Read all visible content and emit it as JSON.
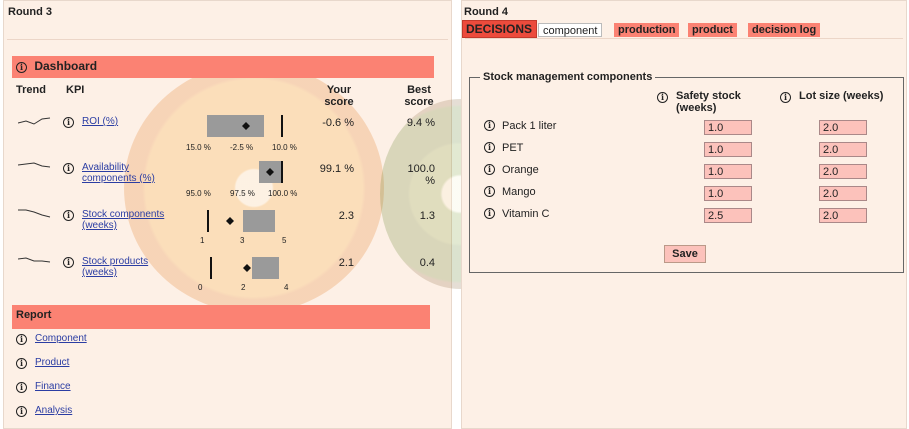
{
  "left": {
    "title": "Round 3",
    "dashboard": {
      "header": "Dashboard",
      "columns": {
        "trend": "Trend",
        "kpi": "KPI",
        "your_score": "Your score",
        "best_score": "Best score"
      },
      "kpis": [
        {
          "name": "ROI (%)",
          "your_score": "-0.6 %",
          "best_score": "9.4 %",
          "ticks": [
            "15.0 %",
            "-2.5 %",
            "10.0 %"
          ],
          "trend_icon": "sparkline"
        },
        {
          "name": "Availability components (%)",
          "your_score": "99.1 %",
          "best_score": "100.0 %",
          "ticks": [
            "95.0 %",
            "97.5 %",
            "100.0 %"
          ],
          "trend_icon": "sparkline"
        },
        {
          "name": "Stock components (weeks)",
          "your_score": "2.3",
          "best_score": "1.3",
          "ticks": [
            "1",
            "3",
            "5"
          ],
          "trend_icon": "sparkline"
        },
        {
          "name": "Stock products (weeks)",
          "your_score": "2.1",
          "best_score": "0.4",
          "ticks": [
            "0",
            "2",
            "4"
          ],
          "trend_icon": "sparkline"
        }
      ]
    },
    "report": {
      "header": "Report",
      "items": [
        "Component",
        "Product",
        "Finance",
        "Analysis"
      ]
    }
  },
  "right": {
    "title": "Round 4",
    "tabs": {
      "decisions": "DECISIONS",
      "items": [
        "component",
        "production",
        "product",
        "decision log"
      ],
      "active": "component"
    },
    "stock": {
      "legend": "Stock management components",
      "col_safety": "Safety stock (weeks)",
      "col_lot": "Lot size (weeks)",
      "rows": [
        {
          "name": "Pack 1 liter",
          "safety": "1.0",
          "lot": "2.0"
        },
        {
          "name": "PET",
          "safety": "1.0",
          "lot": "2.0"
        },
        {
          "name": "Orange",
          "safety": "1.0",
          "lot": "2.0"
        },
        {
          "name": "Mango",
          "safety": "1.0",
          "lot": "2.0"
        },
        {
          "name": "Vitamin C",
          "safety": "2.5",
          "lot": "2.0"
        }
      ],
      "save_label": "Save"
    }
  },
  "colors": {
    "header_red": "#fb8273",
    "decisions_red": "#ec4b3c",
    "input_pink": "#fcc2bb",
    "link_blue": "#2b3da3",
    "panel_bg": "#fdf0e6"
  },
  "icons": {
    "info": "i"
  }
}
